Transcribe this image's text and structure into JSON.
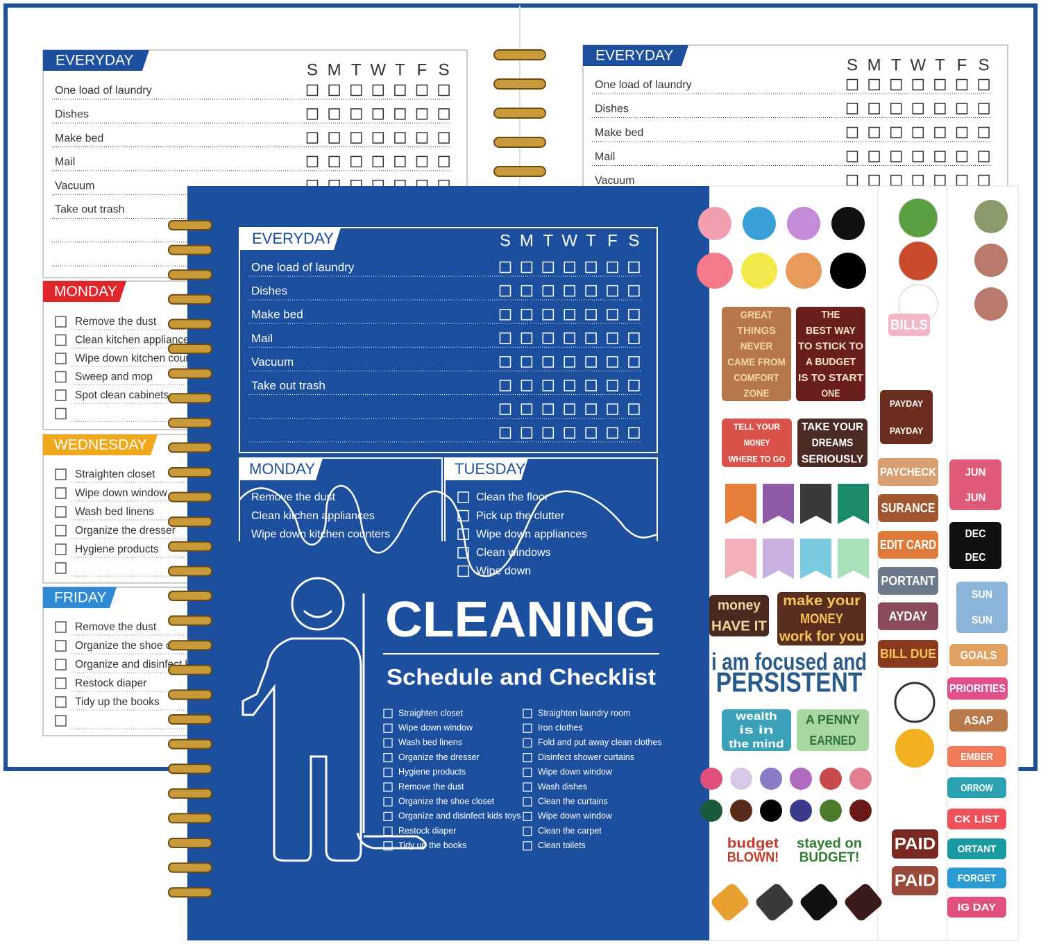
{
  "back_left": {
    "everyday": {
      "title": "EVERYDAY",
      "days": [
        "S",
        "M",
        "T",
        "W",
        "T",
        "F",
        "S"
      ],
      "tasks": [
        "One load of laundry",
        "Dishes",
        "Make bed",
        "Mail",
        "Vacuum",
        "Take out trash"
      ]
    },
    "monday": {
      "title": "MONDAY",
      "items": [
        "Remove the dust",
        "Clean kitchen appliances",
        "Wipe down kitchen counters",
        "Sweep and mop",
        "Spot clean cabinets"
      ]
    },
    "wednesday": {
      "title": "WEDNESDAY",
      "items": [
        "Straighten closet",
        "Wipe down window",
        "Wash bed linens",
        "Organize the dresser",
        "Hygiene products"
      ]
    },
    "friday": {
      "title": "FRIDAY",
      "items": [
        "Remove the dust",
        "Organize the shoe closet",
        "Organize and disinfect kids toys",
        "Restock diaper",
        "Tidy up the books"
      ]
    }
  },
  "back_right": {
    "everyday": {
      "title": "EVERYDAY",
      "days": [
        "S",
        "M",
        "T",
        "W",
        "T",
        "F",
        "S"
      ],
      "tasks": [
        "One load of laundry",
        "Dishes",
        "Make bed",
        "Mail",
        "Vacuum"
      ]
    }
  },
  "cover": {
    "everyday": {
      "title": "EVERYDAY",
      "days": [
        "S",
        "M",
        "T",
        "W",
        "T",
        "F",
        "S"
      ],
      "tasks": [
        "One load of laundry",
        "Dishes",
        "Make bed",
        "Mail",
        "Vacuum",
        "Take out trash"
      ]
    },
    "monday": {
      "title": "MONDAY",
      "items": [
        "Remove the dust",
        "Clean kitchen appliances",
        "Wipe down kitchen counters"
      ]
    },
    "tuesday": {
      "title": "TUESDAY",
      "items": [
        "Clean the floor",
        "Pick up the clutter",
        "Wipe down appliances",
        "Clean windows",
        "Wipe down"
      ]
    },
    "title": "CLEANING",
    "subtitle": "Schedule and Checklist",
    "checklist": [
      [
        "Straighten closet",
        "Wipe down window",
        "Wash bed linens",
        "Organize the dresser",
        "Hygiene products",
        "Remove the dust",
        "Organize the shoe closet",
        "Organize and disinfect kids toys",
        "Restock diaper",
        "Tidy up the books"
      ],
      [
        "Straighten laundry room",
        "Iron clothes",
        "Fold and put away clean clothes",
        "Disinfect shower curtains",
        "Wipe down window",
        "Wash dishes",
        "Clean the curtains",
        "Wipe down window",
        "Clean the carpet",
        "Clean toilets"
      ]
    ]
  },
  "stickers": [
    {
      "lines": [
        "GREAT",
        "THINGS",
        "NEVER",
        "CAME FROM",
        "COMFORT",
        "ZONE"
      ]
    },
    {
      "lines": [
        "THE",
        "BEST WAY",
        "TO STICK TO",
        "A BUDGET",
        "IS TO START",
        "ONE"
      ]
    },
    {
      "lines": [
        "TELL YOUR",
        "MONEY",
        "WHERE TO GO"
      ]
    },
    {
      "lines": [
        "TAKE YOUR",
        "DREAMS",
        "SERIOUSLY"
      ]
    },
    {
      "lines": [
        "money",
        "HAVE IT"
      ]
    },
    {
      "lines": [
        "make your",
        "MONEY",
        "work for you"
      ]
    },
    {
      "lines": [
        "i am focused and",
        "PERSISTENT"
      ]
    },
    {
      "lines": [
        "wealth",
        "is in",
        "the mind"
      ]
    },
    {
      "lines": [
        "A PENNY",
        "EARNED"
      ]
    },
    {
      "lines": [
        "budget",
        "BLOWN!"
      ]
    },
    {
      "lines": [
        "stayed on",
        "BUDGET!"
      ]
    },
    {
      "lines": [
        "BILLS"
      ]
    },
    {
      "lines": [
        "PAYDAY",
        "PAYDAY"
      ]
    },
    {
      "lines": [
        "PAYCHECK"
      ]
    },
    {
      "lines": [
        "SURANCE"
      ]
    },
    {
      "lines": [
        "EDIT CARD"
      ]
    },
    {
      "lines": [
        "PORTANT"
      ]
    },
    {
      "lines": [
        "AYDAY"
      ]
    },
    {
      "lines": [
        "BILL DUE"
      ]
    },
    {
      "lines": [
        "PAID"
      ]
    },
    {
      "lines": [
        "PAID"
      ]
    },
    {
      "lines": [
        "JUN",
        "JUN"
      ]
    },
    {
      "lines": [
        "DEC",
        "DEC"
      ]
    },
    {
      "lines": [
        "SUN",
        "SUN"
      ]
    },
    {
      "lines": [
        "GOALS"
      ]
    },
    {
      "lines": [
        "PRIORITIES"
      ]
    },
    {
      "lines": [
        "ASAP"
      ]
    },
    {
      "lines": [
        "EMBER"
      ]
    },
    {
      "lines": [
        "ORROW"
      ]
    },
    {
      "lines": [
        "CK LIST"
      ]
    },
    {
      "lines": [
        "ORTANT"
      ]
    },
    {
      "lines": [
        "FORGET"
      ]
    },
    {
      "lines": [
        "IG DAY"
      ]
    }
  ]
}
